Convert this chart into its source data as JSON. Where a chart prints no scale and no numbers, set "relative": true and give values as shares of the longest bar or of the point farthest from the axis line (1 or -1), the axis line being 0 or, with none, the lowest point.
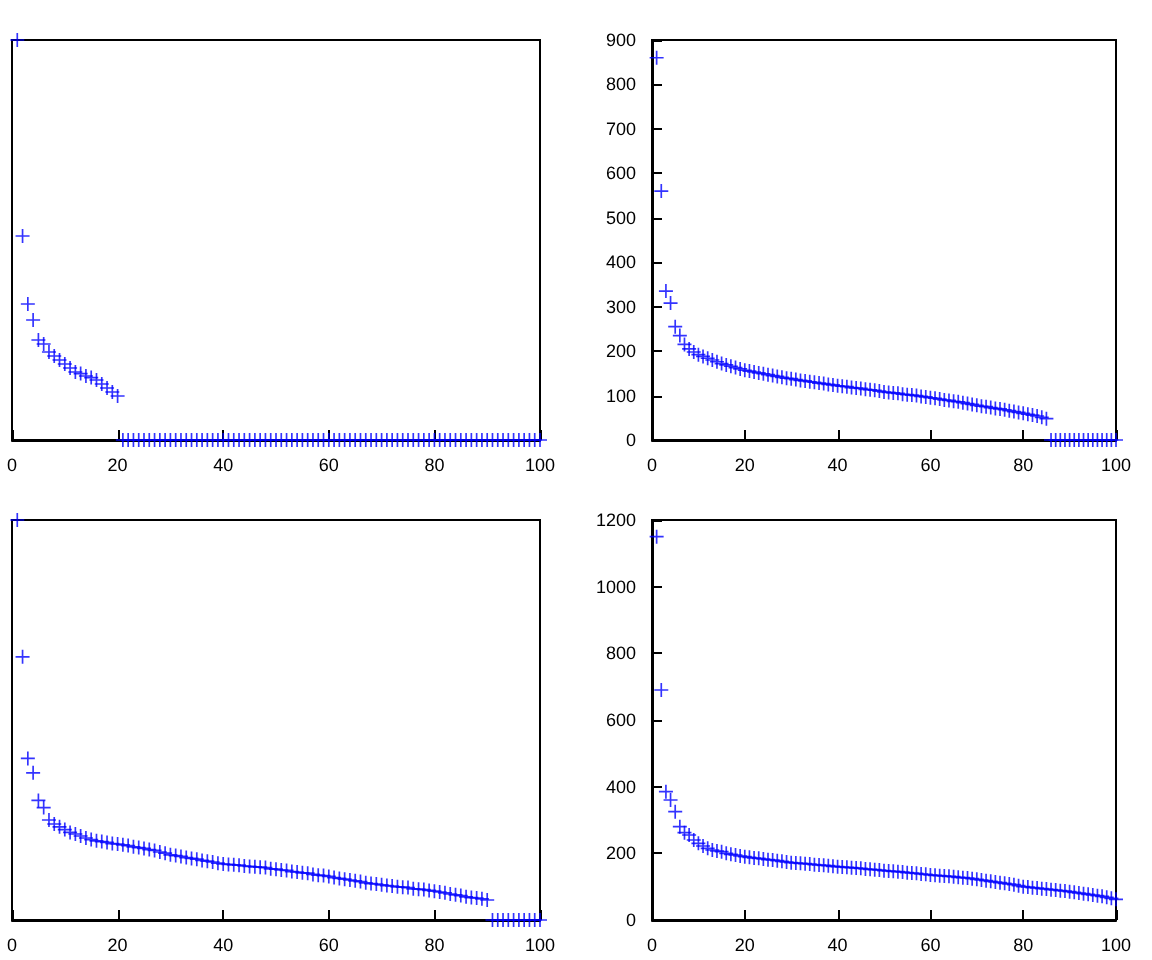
{
  "chart_data": [
    {
      "type": "scatter",
      "relative": true,
      "marker": "cross",
      "xlim": [
        0,
        100
      ],
      "xticks": [
        0,
        20,
        40,
        60,
        80,
        100
      ],
      "x": [
        1,
        2,
        3,
        4,
        5,
        6,
        7,
        8,
        9,
        10,
        11,
        12,
        13,
        14,
        15,
        16,
        17,
        18,
        19,
        20,
        21,
        22,
        23,
        24,
        25,
        26,
        27,
        28,
        29,
        30,
        31,
        32,
        33,
        34,
        35,
        36,
        37,
        38,
        39,
        40,
        41,
        42,
        43,
        44,
        45,
        46,
        47,
        48,
        49,
        50,
        51,
        52,
        53,
        54,
        55,
        56,
        57,
        58,
        59,
        60,
        61,
        62,
        63,
        64,
        65,
        66,
        67,
        68,
        69,
        70,
        71,
        72,
        73,
        74,
        75,
        76,
        77,
        78,
        79,
        80,
        81,
        82,
        83,
        84,
        85,
        86,
        87,
        88,
        89,
        90,
        91,
        92,
        93,
        94,
        95,
        96,
        97,
        98,
        99,
        100
      ],
      "series": [
        {
          "color": "#0000ff",
          "values": [
            1,
            0.51,
            0.34,
            0.3,
            0.25,
            0.24,
            0.22,
            0.21,
            0.2,
            0.19,
            0.18,
            0.17,
            0.166,
            0.16,
            0.156,
            0.15,
            0.14,
            0.13,
            0.12,
            0.11,
            0,
            0,
            0,
            0,
            0,
            0,
            0,
            0,
            0,
            0,
            0,
            0,
            0,
            0,
            0,
            0,
            0,
            0,
            0,
            0,
            0,
            0,
            0,
            0,
            0,
            0,
            0,
            0,
            0,
            0,
            0,
            0,
            0,
            0,
            0,
            0,
            0,
            0,
            0,
            0,
            0,
            0,
            0,
            0,
            0,
            0,
            0,
            0,
            0,
            0,
            0,
            0,
            0,
            0,
            0,
            0,
            0,
            0,
            0,
            0,
            0,
            0,
            0,
            0,
            0,
            0,
            0,
            0,
            0,
            0,
            0,
            0,
            0,
            0,
            0,
            0,
            0,
            0,
            0,
            0
          ]
        }
      ]
    },
    {
      "type": "scatter",
      "marker": "cross",
      "xlim": [
        0,
        100
      ],
      "xticks": [
        0,
        20,
        40,
        60,
        80,
        100
      ],
      "ylim": [
        0,
        900
      ],
      "yticks": [
        0,
        100,
        200,
        300,
        400,
        500,
        600,
        700,
        800,
        900
      ],
      "x": [
        1,
        2,
        3,
        4,
        5,
        6,
        7,
        8,
        9,
        10,
        11,
        12,
        13,
        14,
        15,
        16,
        17,
        18,
        19,
        20,
        21,
        22,
        23,
        24,
        25,
        26,
        27,
        28,
        29,
        30,
        31,
        32,
        33,
        34,
        35,
        36,
        37,
        38,
        39,
        40,
        41,
        42,
        43,
        44,
        45,
        46,
        47,
        48,
        49,
        50,
        51,
        52,
        53,
        54,
        55,
        56,
        57,
        58,
        59,
        60,
        61,
        62,
        63,
        64,
        65,
        66,
        67,
        68,
        69,
        70,
        71,
        72,
        73,
        74,
        75,
        76,
        77,
        78,
        79,
        80,
        81,
        82,
        83,
        84,
        85,
        86,
        87,
        88,
        89,
        90,
        91,
        92,
        93,
        94,
        95,
        96,
        97,
        98,
        99,
        100
      ],
      "series": [
        {
          "color": "#0000ff",
          "values": [
            860,
            560,
            335,
            308,
            255,
            235,
            215,
            205,
            198,
            192,
            188,
            184,
            180,
            176,
            172,
            169,
            166,
            163,
            160,
            157,
            155,
            153,
            151,
            149,
            147,
            145,
            143,
            141,
            139,
            138,
            136,
            134,
            133,
            131,
            130,
            128,
            127,
            125,
            124,
            122,
            121,
            120,
            118,
            117,
            116,
            114,
            113,
            112,
            110,
            108,
            107,
            106,
            105,
            103,
            102,
            101,
            100,
            98,
            97,
            95,
            94,
            92,
            90,
            89,
            87,
            86,
            84,
            82,
            80,
            78,
            76,
            75,
            73,
            71,
            70,
            68,
            66,
            64,
            62,
            60,
            58,
            56,
            54,
            51,
            48,
            0,
            0,
            0,
            0,
            0,
            0,
            0,
            0,
            0,
            0,
            0,
            0,
            0,
            0,
            0
          ]
        }
      ]
    },
    {
      "type": "scatter",
      "relative": true,
      "marker": "cross",
      "xlim": [
        0,
        100
      ],
      "xticks": [
        0,
        20,
        40,
        60,
        80,
        100
      ],
      "x": [
        1,
        2,
        3,
        4,
        5,
        6,
        7,
        8,
        9,
        10,
        11,
        12,
        13,
        14,
        15,
        16,
        17,
        18,
        19,
        20,
        21,
        22,
        23,
        24,
        25,
        26,
        27,
        28,
        29,
        30,
        31,
        32,
        33,
        34,
        35,
        36,
        37,
        38,
        39,
        40,
        41,
        42,
        43,
        44,
        45,
        46,
        47,
        48,
        49,
        50,
        51,
        52,
        53,
        54,
        55,
        56,
        57,
        58,
        59,
        60,
        61,
        62,
        63,
        64,
        65,
        66,
        67,
        68,
        69,
        70,
        71,
        72,
        73,
        74,
        75,
        76,
        77,
        78,
        79,
        80,
        81,
        82,
        83,
        84,
        85,
        86,
        87,
        88,
        89,
        90,
        91,
        92,
        93,
        94,
        95,
        96,
        97,
        98,
        99,
        100
      ],
      "series": [
        {
          "color": "#0000ff",
          "values": [
            1,
            0.658,
            0.404,
            0.368,
            0.299,
            0.281,
            0.25,
            0.24,
            0.233,
            0.226,
            0.219,
            0.215,
            0.21,
            0.205,
            0.201,
            0.198,
            0.196,
            0.194,
            0.191,
            0.19,
            0.188,
            0.186,
            0.183,
            0.181,
            0.179,
            0.176,
            0.174,
            0.17,
            0.167,
            0.163,
            0.161,
            0.159,
            0.156,
            0.154,
            0.152,
            0.149,
            0.147,
            0.145,
            0.142,
            0.14,
            0.139,
            0.138,
            0.137,
            0.135,
            0.134,
            0.133,
            0.132,
            0.131,
            0.128,
            0.127,
            0.125,
            0.124,
            0.121,
            0.12,
            0.118,
            0.117,
            0.114,
            0.112,
            0.111,
            0.109,
            0.106,
            0.104,
            0.102,
            0.1,
            0.098,
            0.096,
            0.093,
            0.091,
            0.09,
            0.088,
            0.086,
            0.085,
            0.083,
            0.082,
            0.081,
            0.078,
            0.077,
            0.076,
            0.074,
            0.072,
            0.07,
            0.068,
            0.065,
            0.063,
            0.061,
            0.058,
            0.056,
            0.055,
            0.053,
            0.05,
            0,
            0,
            0,
            0,
            0,
            0,
            0,
            0,
            0,
            0
          ]
        }
      ]
    },
    {
      "type": "scatter",
      "marker": "cross",
      "xlim": [
        0,
        100
      ],
      "xticks": [
        0,
        20,
        40,
        60,
        80,
        100
      ],
      "ylim": [
        0,
        1200
      ],
      "yticks": [
        0,
        200,
        400,
        600,
        800,
        1000,
        1200
      ],
      "x": [
        1,
        2,
        3,
        4,
        5,
        6,
        7,
        8,
        9,
        10,
        11,
        12,
        13,
        14,
        15,
        16,
        17,
        18,
        19,
        20,
        21,
        22,
        23,
        24,
        25,
        26,
        27,
        28,
        29,
        30,
        31,
        32,
        33,
        34,
        35,
        36,
        37,
        38,
        39,
        40,
        41,
        42,
        43,
        44,
        45,
        46,
        47,
        48,
        49,
        50,
        51,
        52,
        53,
        54,
        55,
        56,
        57,
        58,
        59,
        60,
        61,
        62,
        63,
        64,
        65,
        66,
        67,
        68,
        69,
        70,
        71,
        72,
        73,
        74,
        75,
        76,
        77,
        78,
        79,
        80,
        81,
        82,
        83,
        84,
        85,
        86,
        87,
        88,
        89,
        90,
        91,
        92,
        93,
        94,
        95,
        96,
        97,
        98,
        99,
        100
      ],
      "series": [
        {
          "color": "#0000ff",
          "values": [
            1150,
            690,
            385,
            360,
            325,
            280,
            262,
            255,
            240,
            230,
            222,
            215,
            210,
            207,
            205,
            200,
            197,
            195,
            192,
            190,
            188,
            186,
            185,
            183,
            181,
            180,
            178,
            176,
            174,
            172,
            171,
            170,
            169,
            168,
            166,
            165,
            164,
            163,
            161,
            160,
            159,
            158,
            157,
            156,
            155,
            153,
            152,
            151,
            150,
            148,
            147,
            146,
            145,
            144,
            142,
            141,
            140,
            138,
            137,
            135,
            134,
            133,
            132,
            131,
            130,
            128,
            127,
            126,
            124,
            122,
            120,
            118,
            116,
            114,
            112,
            110,
            108,
            106,
            103,
            100,
            99,
            97,
            96,
            94,
            93,
            91,
            90,
            88,
            87,
            85,
            83,
            81,
            79,
            77,
            75,
            73,
            71,
            68,
            65,
            62
          ]
        }
      ]
    }
  ]
}
